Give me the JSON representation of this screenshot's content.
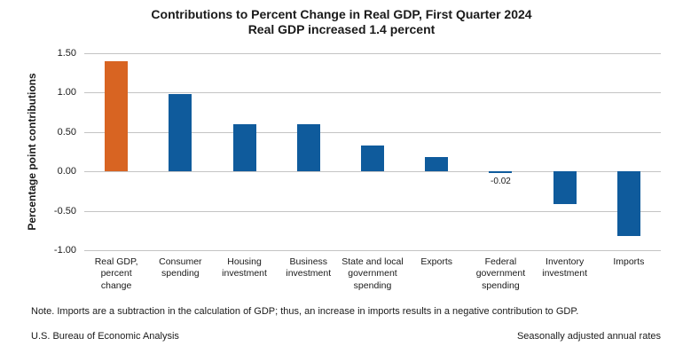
{
  "chart_data": {
    "type": "bar",
    "title": "Contributions to Percent Change in Real GDP, First Quarter 2024",
    "subtitle": "Real GDP increased 1.4 percent",
    "xlabel": "",
    "ylabel": "Percentage point contributions",
    "ylim": [
      -1.0,
      1.5
    ],
    "grid": true,
    "legend": false,
    "ytick_labels": [
      "1.50",
      "1.00",
      "0.50",
      "0.00",
      "-0.50",
      "-1.00"
    ],
    "categories": [
      "Real GDP,\npercent\nchange",
      "Consumer\nspending",
      "Housing\ninvestment",
      "Business\ninvestment",
      "State and local\ngovernment\nspending",
      "Exports",
      "Federal\ngovernment\nspending",
      "Inventory\ninvestment",
      "Imports"
    ],
    "values": [
      1.4,
      0.98,
      0.6,
      0.6,
      0.33,
      0.18,
      -0.02,
      -0.42,
      -0.82
    ],
    "colors": [
      "#D86422",
      "#0F5B9C",
      "#0F5B9C",
      "#0F5B9C",
      "#0F5B9C",
      "#0F5B9C",
      "#0F5B9C",
      "#0F5B9C",
      "#0F5B9C"
    ],
    "data_labels": [
      null,
      null,
      null,
      null,
      null,
      null,
      "-0.02",
      null,
      null
    ]
  },
  "note": "Note. Imports are a subtraction in the calculation of GDP; thus, an increase in imports results in a negative contribution to GDP.",
  "footer": {
    "left": "U.S. Bureau of Economic Analysis",
    "right": "Seasonally adjusted annual rates"
  }
}
